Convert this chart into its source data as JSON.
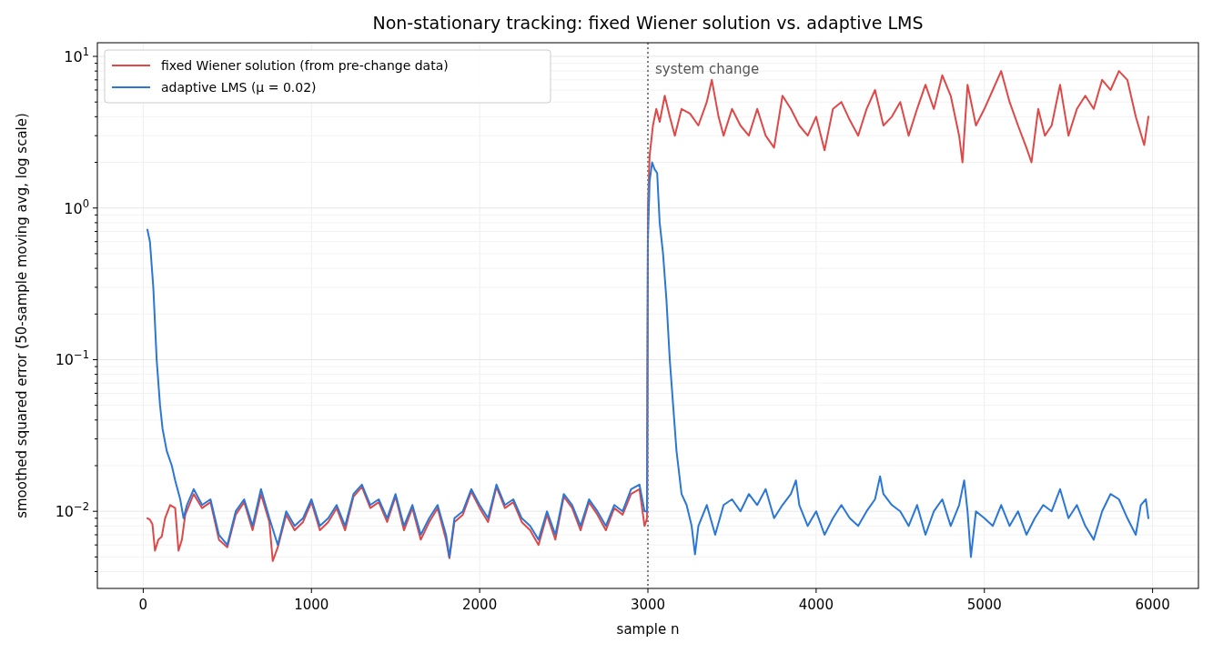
{
  "chart_data": {
    "type": "line",
    "title": "Non-stationary tracking: fixed Wiener solution vs. adaptive LMS",
    "xlabel": "sample n",
    "ylabel": "smoothed squared error (50-sample moving avg, log scale)",
    "log": "y",
    "grid": true,
    "legend": "top left",
    "xlim": [
      -272.5,
      6272.5
    ],
    "ylim": [
      0.0031,
      12.3
    ],
    "xticks": [
      0,
      1000,
      2000,
      3000,
      4000,
      5000,
      6000
    ],
    "yticks": [
      {
        "value": 0.004,
        "label": null
      },
      {
        "value": 0.005,
        "label": null
      },
      {
        "value": 0.006,
        "label": null
      },
      {
        "value": 0.007,
        "label": null
      },
      {
        "value": 0.008,
        "label": null
      },
      {
        "value": 0.009,
        "label": null
      },
      {
        "value": 0.01,
        "label": "10$^{−2}$"
      },
      {
        "value": 0.02,
        "label": null
      },
      {
        "value": 0.03,
        "label": null
      },
      {
        "value": 0.04,
        "label": null
      },
      {
        "value": 0.05,
        "label": null
      },
      {
        "value": 0.06,
        "label": null
      },
      {
        "value": 0.07,
        "label": null
      },
      {
        "value": 0.08,
        "label": null
      },
      {
        "value": 0.09,
        "label": null
      },
      {
        "value": 0.1,
        "label": "10$^{−1}$"
      },
      {
        "value": 0.2,
        "label": null
      },
      {
        "value": 0.3,
        "label": null
      },
      {
        "value": 0.4,
        "label": null
      },
      {
        "value": 0.5,
        "label": null
      },
      {
        "value": 0.6,
        "label": null
      },
      {
        "value": 0.7,
        "label": null
      },
      {
        "value": 0.8,
        "label": null
      },
      {
        "value": 0.9,
        "label": null
      },
      {
        "value": 1,
        "label": "10$^{0}$"
      },
      {
        "value": 2,
        "label": null
      },
      {
        "value": 3,
        "label": null
      },
      {
        "value": 4,
        "label": null
      },
      {
        "value": 5,
        "label": null
      },
      {
        "value": 6,
        "label": null
      },
      {
        "value": 7,
        "label": null
      },
      {
        "value": 8,
        "label": null
      },
      {
        "value": 9,
        "label": null
      },
      {
        "value": 10,
        "label": "10$^{1}$"
      }
    ],
    "ref_lines": [
      {
        "axis": "x",
        "value": 3000,
        "label": "system change",
        "color": "#808080",
        "line_style": "dotted"
      }
    ],
    "series": [
      {
        "name": "fixed Wiener solution (from pre-change data)",
        "color": "#e04848",
        "x": [
          25,
          40,
          55,
          70,
          90,
          110,
          130,
          160,
          190,
          210,
          230,
          250,
          300,
          350,
          400,
          450,
          500,
          550,
          600,
          650,
          700,
          750,
          770,
          800,
          850,
          900,
          950,
          1000,
          1050,
          1100,
          1150,
          1200,
          1250,
          1300,
          1350,
          1400,
          1450,
          1500,
          1550,
          1600,
          1650,
          1700,
          1750,
          1800,
          1820,
          1850,
          1900,
          1950,
          2000,
          2050,
          2100,
          2150,
          2200,
          2250,
          2300,
          2350,
          2400,
          2450,
          2500,
          2550,
          2600,
          2650,
          2700,
          2750,
          2800,
          2850,
          2900,
          2950,
          2980,
          2995,
          3000,
          3010,
          3030,
          3050,
          3070,
          3100,
          3130,
          3160,
          3200,
          3250,
          3300,
          3350,
          3380,
          3420,
          3450,
          3500,
          3550,
          3600,
          3650,
          3700,
          3750,
          3800,
          3850,
          3900,
          3950,
          4000,
          4050,
          4100,
          4150,
          4200,
          4250,
          4300,
          4350,
          4400,
          4450,
          4500,
          4550,
          4600,
          4650,
          4700,
          4750,
          4800,
          4850,
          4870,
          4900,
          4950,
          5000,
          5050,
          5100,
          5150,
          5200,
          5250,
          5280,
          5320,
          5360,
          5400,
          5450,
          5500,
          5550,
          5600,
          5650,
          5700,
          5750,
          5800,
          5850,
          5900,
          5950,
          5975
        ],
        "values": [
          0.009,
          0.0088,
          0.0082,
          0.0055,
          0.0065,
          0.0068,
          0.009,
          0.011,
          0.0105,
          0.0055,
          0.0065,
          0.0095,
          0.013,
          0.0105,
          0.0115,
          0.0065,
          0.0058,
          0.0095,
          0.0115,
          0.0075,
          0.013,
          0.0085,
          0.0047,
          0.0058,
          0.0095,
          0.0075,
          0.0085,
          0.0115,
          0.0075,
          0.0085,
          0.0105,
          0.0075,
          0.0125,
          0.0145,
          0.0105,
          0.0115,
          0.0085,
          0.0125,
          0.0075,
          0.0105,
          0.0065,
          0.0085,
          0.0105,
          0.0065,
          0.0049,
          0.0085,
          0.0095,
          0.0135,
          0.0105,
          0.0085,
          0.0145,
          0.0105,
          0.0115,
          0.0085,
          0.0075,
          0.006,
          0.0095,
          0.0065,
          0.0125,
          0.0105,
          0.0075,
          0.0115,
          0.0095,
          0.0075,
          0.0105,
          0.0095,
          0.013,
          0.014,
          0.008,
          0.009,
          1.0,
          2.2,
          3.5,
          4.5,
          3.7,
          5.5,
          4.0,
          3.0,
          4.5,
          4.2,
          3.5,
          5.0,
          7.0,
          4.0,
          3.0,
          4.5,
          3.5,
          3.0,
          4.5,
          3.0,
          2.5,
          5.5,
          4.5,
          3.5,
          3.0,
          4.0,
          2.4,
          4.5,
          5.0,
          3.8,
          3.0,
          4.5,
          6.0,
          3.5,
          4.0,
          5.0,
          3.0,
          4.5,
          6.5,
          4.5,
          7.5,
          5.5,
          3.0,
          2.0,
          6.5,
          3.5,
          4.5,
          6.0,
          8.0,
          5.0,
          3.5,
          2.5,
          2.0,
          4.5,
          3.0,
          3.5,
          6.5,
          3.0,
          4.5,
          5.5,
          4.5,
          7.0,
          6.0,
          8.0,
          7.0,
          4.0,
          2.6,
          4.0
        ]
      },
      {
        "name": "adaptive LMS (μ = 0.02)",
        "color": "#2a77d6",
        "x": [
          25,
          40,
          60,
          80,
          100,
          115,
          140,
          170,
          190,
          220,
          240,
          260,
          300,
          350,
          400,
          450,
          500,
          550,
          600,
          650,
          700,
          750,
          800,
          850,
          900,
          950,
          1000,
          1050,
          1100,
          1150,
          1200,
          1250,
          1300,
          1350,
          1400,
          1450,
          1500,
          1550,
          1600,
          1650,
          1700,
          1750,
          1800,
          1820,
          1850,
          1900,
          1950,
          2000,
          2050,
          2100,
          2150,
          2200,
          2250,
          2300,
          2350,
          2400,
          2450,
          2500,
          2550,
          2600,
          2650,
          2700,
          2750,
          2800,
          2850,
          2900,
          2950,
          2980,
          2995,
          3000,
          3010,
          3025,
          3040,
          3055,
          3070,
          3090,
          3110,
          3130,
          3150,
          3170,
          3200,
          3230,
          3260,
          3280,
          3300,
          3350,
          3400,
          3450,
          3500,
          3550,
          3600,
          3650,
          3700,
          3750,
          3800,
          3850,
          3880,
          3900,
          3950,
          4000,
          4050,
          4100,
          4150,
          4200,
          4250,
          4300,
          4350,
          4380,
          4400,
          4450,
          4500,
          4550,
          4600,
          4650,
          4700,
          4750,
          4800,
          4850,
          4880,
          4900,
          4920,
          4950,
          5000,
          5050,
          5100,
          5150,
          5200,
          5250,
          5300,
          5350,
          5400,
          5450,
          5500,
          5550,
          5600,
          5650,
          5700,
          5750,
          5800,
          5850,
          5900,
          5930,
          5960,
          5975
        ],
        "values": [
          0.72,
          0.6,
          0.3,
          0.1,
          0.05,
          0.035,
          0.025,
          0.02,
          0.016,
          0.012,
          0.009,
          0.011,
          0.014,
          0.011,
          0.012,
          0.007,
          0.006,
          0.01,
          0.012,
          0.008,
          0.014,
          0.009,
          0.006,
          0.01,
          0.008,
          0.009,
          0.012,
          0.008,
          0.009,
          0.011,
          0.008,
          0.013,
          0.015,
          0.011,
          0.012,
          0.009,
          0.013,
          0.008,
          0.011,
          0.007,
          0.009,
          0.011,
          0.007,
          0.005,
          0.009,
          0.01,
          0.014,
          0.011,
          0.009,
          0.015,
          0.011,
          0.012,
          0.009,
          0.008,
          0.0065,
          0.01,
          0.007,
          0.013,
          0.011,
          0.008,
          0.012,
          0.01,
          0.008,
          0.011,
          0.01,
          0.014,
          0.015,
          0.01,
          0.01,
          0.6,
          1.5,
          2.0,
          1.8,
          1.7,
          0.8,
          0.5,
          0.25,
          0.1,
          0.05,
          0.025,
          0.013,
          0.011,
          0.008,
          0.0052,
          0.008,
          0.011,
          0.007,
          0.011,
          0.012,
          0.01,
          0.013,
          0.011,
          0.014,
          0.009,
          0.011,
          0.013,
          0.016,
          0.011,
          0.008,
          0.01,
          0.007,
          0.009,
          0.011,
          0.009,
          0.008,
          0.01,
          0.012,
          0.017,
          0.013,
          0.011,
          0.01,
          0.008,
          0.011,
          0.007,
          0.01,
          0.012,
          0.008,
          0.011,
          0.016,
          0.01,
          0.005,
          0.01,
          0.009,
          0.008,
          0.011,
          0.008,
          0.01,
          0.007,
          0.009,
          0.011,
          0.01,
          0.014,
          0.009,
          0.011,
          0.008,
          0.0065,
          0.01,
          0.013,
          0.012,
          0.009,
          0.007,
          0.011,
          0.012,
          0.009
        ]
      }
    ]
  }
}
